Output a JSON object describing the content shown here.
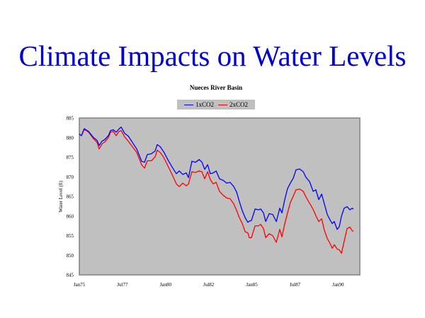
{
  "slide": {
    "title": "Climate Impacts on Water Levels"
  },
  "chart_data": {
    "type": "line",
    "title": "Nueces River Basin",
    "xlabel": "",
    "ylabel": "Water Level (ft)",
    "ylim": [
      845,
      885
    ],
    "yticks": [
      "885",
      "880",
      "875",
      "870",
      "865",
      "860",
      "855",
      "850",
      "845"
    ],
    "ytick_values": [
      885,
      880,
      875,
      870,
      865,
      860,
      855,
      850,
      845
    ],
    "xticks": [
      "Jan75",
      "Jul77",
      "Jan80",
      "Jul82",
      "Jan85",
      "Jul87",
      "Jan90"
    ],
    "xtick_months": [
      0,
      30,
      60,
      90,
      120,
      150,
      180
    ],
    "xlim_months": [
      0,
      195
    ],
    "x_unit": "months since Jan 1975",
    "legend_position": "top-center",
    "plot_background": "#c0c0c0",
    "grid": false,
    "x": [
      0,
      1.5,
      3.4,
      6.4,
      9.9,
      12.3,
      13.8,
      15.8,
      17.7,
      20.2,
      21.7,
      23.6,
      25.6,
      27.6,
      29.1,
      31.5,
      34,
      36.9,
      39.9,
      43.3,
      45.3,
      47.3,
      50.2,
      52.7,
      54.2,
      56.2,
      58.6,
      62.1,
      65.5,
      67.5,
      69.5,
      71.9,
      74.4,
      75.9,
      78.3,
      80.8,
      83.3,
      85.2,
      87.2,
      89.2,
      91.1,
      93.1,
      95.1,
      97.5,
      100,
      102.5,
      104.9,
      107.4,
      109.4,
      111.3,
      113.3,
      115.3,
      117.2,
      118.2,
      119.7,
      122.2,
      124.6,
      126.1,
      128.1,
      129.6,
      132,
      134.5,
      137,
      139.4,
      140.9,
      142.9,
      144.8,
      146.8,
      148.8,
      150.7,
      153.2,
      155.7,
      157.6,
      160.1,
      162.6,
      164.5,
      166.5,
      168.5,
      170.4,
      172.4,
      174.4,
      175.9,
      177.3,
      179.3,
      180.8,
      182.3,
      184.2,
      186.2,
      188.2,
      189.7,
      190.6
    ],
    "series": [
      {
        "name": "1xCO2",
        "color": "#0000ff",
        "values": [
          880.9,
          880.5,
          882.3,
          881.6,
          880,
          879.3,
          878,
          879.1,
          879.5,
          880.5,
          881.8,
          882,
          881.4,
          882.2,
          882.7,
          881.1,
          880.4,
          878.8,
          877.1,
          874,
          873.7,
          875.7,
          875.9,
          876.6,
          878.2,
          877.7,
          876.4,
          874,
          871.9,
          870.8,
          871.5,
          870.6,
          871,
          869.8,
          874,
          873.7,
          874.4,
          873.8,
          871.9,
          873.1,
          870.8,
          871,
          871.5,
          869.5,
          869.1,
          868.4,
          868.6,
          867.5,
          866.1,
          863.7,
          861.4,
          859.6,
          858.4,
          858.7,
          858.9,
          861.8,
          861.6,
          861.8,
          860.8,
          858.6,
          860.6,
          860.4,
          858.6,
          862,
          860.8,
          864.3,
          867,
          868.4,
          869.7,
          871.8,
          872,
          871.3,
          869.9,
          868.8,
          866.3,
          866.7,
          864.2,
          865.6,
          863.1,
          860.4,
          859,
          858.1,
          858.6,
          856.6,
          857.3,
          860,
          862,
          862.4,
          861.6,
          862,
          861.8
        ]
      },
      {
        "name": "2xCO2",
        "color": "#ff0000",
        "values": [
          880.9,
          880.5,
          882.1,
          881.4,
          879.7,
          878.8,
          877.1,
          878.4,
          878.9,
          880,
          881.4,
          881.6,
          880.5,
          881.6,
          881.8,
          880.2,
          879.1,
          877.7,
          876.2,
          873.1,
          872.2,
          874.1,
          874.1,
          875.1,
          876.8,
          876.2,
          875,
          872.4,
          869.8,
          868.2,
          867.5,
          868.4,
          867.7,
          868.2,
          871.3,
          871.1,
          871.5,
          871.3,
          869.5,
          871.3,
          869.3,
          868.2,
          868.6,
          866.3,
          865.3,
          864.6,
          864.4,
          863.1,
          861.4,
          859.6,
          858.1,
          856,
          855.7,
          854.5,
          854.5,
          857.5,
          857.5,
          857.9,
          856.8,
          854.5,
          855.5,
          855,
          853.3,
          856.6,
          854.7,
          858.1,
          860.8,
          863.5,
          865.1,
          866.7,
          866.9,
          866.3,
          864.9,
          863.3,
          861.7,
          860.1,
          858.6,
          859.3,
          856.4,
          854.3,
          853,
          851.8,
          852.7,
          851.6,
          851.4,
          850.5,
          853.6,
          856.8,
          857.2,
          856.3,
          856.1
        ]
      }
    ]
  }
}
